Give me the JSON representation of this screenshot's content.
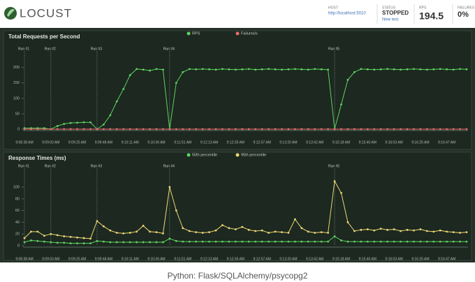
{
  "header": {
    "logo": "LOCUST",
    "host_label": "HOST",
    "host": "http://localhost:5010",
    "status_label": "STATUS",
    "status": "STOPPED",
    "new_test": "New test",
    "rps_label": "RPS",
    "rps": 194.5,
    "failures_label": "FAILURES",
    "failures": "0%"
  },
  "caption": "Python: Flask/SQLAlchemy/psycopg2",
  "chart_data": [
    {
      "type": "line",
      "title": "Total Requests per Second",
      "legend": "top",
      "categories": [
        "9:08:38 AM",
        null,
        null,
        null,
        "9:09:03 AM",
        null,
        null,
        null,
        "9:09:25 AM",
        null,
        null,
        null,
        "9:09:48 AM",
        null,
        null,
        null,
        "9:10:11 AM",
        null,
        null,
        null,
        "9:10:36 AM",
        null,
        null,
        null,
        "9:11:51 AM",
        null,
        null,
        null,
        "9:12:13 AM",
        null,
        null,
        null,
        "9:12:35 AM",
        null,
        null,
        null,
        "9:12:57 AM",
        null,
        null,
        null,
        "9:13:20 AM",
        null,
        null,
        null,
        "9:13:42 AM",
        null,
        null,
        null,
        "9:15:18 AM",
        null,
        null,
        null,
        "9:15:40 AM",
        null,
        null,
        null,
        "9:16:03 AM",
        null,
        null,
        null,
        "9:16:25 AM",
        null,
        null,
        null,
        "9:16:47 AM",
        null,
        null,
        null
      ],
      "ylim": [
        0,
        240
      ],
      "yticks": [
        0,
        50,
        100,
        150,
        200
      ],
      "annotations": [
        {
          "text": "Run #1",
          "x": 0
        },
        {
          "text": "Run #2",
          "x": 4
        },
        {
          "text": "Run #3",
          "x": 11
        },
        {
          "text": "Run #4",
          "x": 22
        },
        {
          "text": "Run #5",
          "x": 47
        }
      ],
      "series": [
        {
          "name": "RPS",
          "color": "#5fd35f",
          "values": [
            3,
            3,
            3,
            3,
            0,
            10,
            17,
            20,
            21,
            22,
            22,
            0,
            15,
            45,
            90,
            130,
            175,
            195,
            193,
            190,
            195,
            193,
            0,
            150,
            185,
            195,
            194,
            195,
            194,
            193,
            195,
            194,
            193,
            194,
            195,
            193,
            194,
            195,
            194,
            193,
            194,
            195,
            194,
            193,
            195,
            194,
            193,
            0,
            80,
            160,
            185,
            195,
            194,
            193,
            194,
            195,
            194,
            193,
            194,
            195,
            194,
            193,
            194,
            195,
            194,
            193,
            195,
            194
          ]
        },
        {
          "name": "Failures/s",
          "color": "#e86f6f",
          "values": [
            0,
            0,
            0,
            0,
            0,
            0,
            0,
            0,
            0,
            0,
            0,
            0,
            0,
            0,
            0,
            0,
            0,
            0,
            0,
            0,
            0,
            0,
            0,
            0,
            0,
            0,
            0,
            0,
            0,
            0,
            0,
            0,
            0,
            0,
            0,
            0,
            0,
            0,
            0,
            0,
            0,
            0,
            0,
            0,
            0,
            0,
            0,
            0,
            0,
            0,
            0,
            0,
            0,
            0,
            0,
            0,
            0,
            0,
            0,
            0,
            0,
            0,
            0,
            0,
            0,
            0,
            0,
            0
          ]
        }
      ]
    },
    {
      "type": "line",
      "title": "Response Times (ms)",
      "legend": "top",
      "categories": [
        "9:08:38 AM",
        null,
        null,
        null,
        "9:09:03 AM",
        null,
        null,
        null,
        "9:09:25 AM",
        null,
        null,
        null,
        "9:09:48 AM",
        null,
        null,
        null,
        "9:10:11 AM",
        null,
        null,
        null,
        "9:10:36 AM",
        null,
        null,
        null,
        "9:11:51 AM",
        null,
        null,
        null,
        "9:12:13 AM",
        null,
        null,
        null,
        "9:12:35 AM",
        null,
        null,
        null,
        "9:12:57 AM",
        null,
        null,
        null,
        "9:13:20 AM",
        null,
        null,
        null,
        "9:13:42 AM",
        null,
        null,
        null,
        "9:15:18 AM",
        null,
        null,
        null,
        "9:15:40 AM",
        null,
        null,
        null,
        "9:16:03 AM",
        null,
        null,
        null,
        "9:16:25 AM",
        null,
        null,
        null,
        "9:16:47 AM",
        null,
        null,
        null
      ],
      "ylim": [
        0,
        125
      ],
      "yticks": [
        0,
        20,
        40,
        60,
        80,
        100
      ],
      "annotations": [
        {
          "text": "Run #1",
          "x": 0
        },
        {
          "text": "Run #2",
          "x": 4
        },
        {
          "text": "Run #3",
          "x": 11
        },
        {
          "text": "Run #4",
          "x": 22
        },
        {
          "text": "Run #5",
          "x": 47
        }
      ],
      "series": [
        {
          "name": "50th percentile",
          "color": "#5fd35f",
          "values": [
            6,
            9,
            8,
            7,
            6,
            5,
            5,
            4,
            4,
            4,
            4,
            8,
            7,
            6,
            6,
            6,
            6,
            6,
            6,
            6,
            6,
            6,
            12,
            8,
            7,
            7,
            7,
            7,
            7,
            7,
            7,
            7,
            7,
            7,
            7,
            7,
            7,
            7,
            7,
            7,
            7,
            7,
            7,
            7,
            7,
            7,
            7,
            16,
            9,
            7,
            7,
            7,
            7,
            7,
            7,
            7,
            7,
            7,
            7,
            7,
            7,
            7,
            7,
            7,
            7,
            7,
            7,
            7
          ]
        },
        {
          "name": "95th percentile",
          "color": "#eed873",
          "values": [
            13,
            24,
            24,
            17,
            20,
            18,
            16,
            15,
            14,
            13,
            12,
            42,
            33,
            26,
            22,
            21,
            22,
            24,
            34,
            24,
            23,
            21,
            100,
            60,
            30,
            25,
            23,
            22,
            23,
            26,
            35,
            30,
            28,
            32,
            27,
            25,
            26,
            22,
            24,
            23,
            22,
            45,
            30,
            24,
            22,
            23,
            22,
            110,
            90,
            40,
            25,
            27,
            28,
            26,
            29,
            27,
            28,
            25,
            27,
            26,
            28,
            25,
            24,
            26,
            24,
            23,
            22,
            23
          ]
        }
      ]
    }
  ]
}
